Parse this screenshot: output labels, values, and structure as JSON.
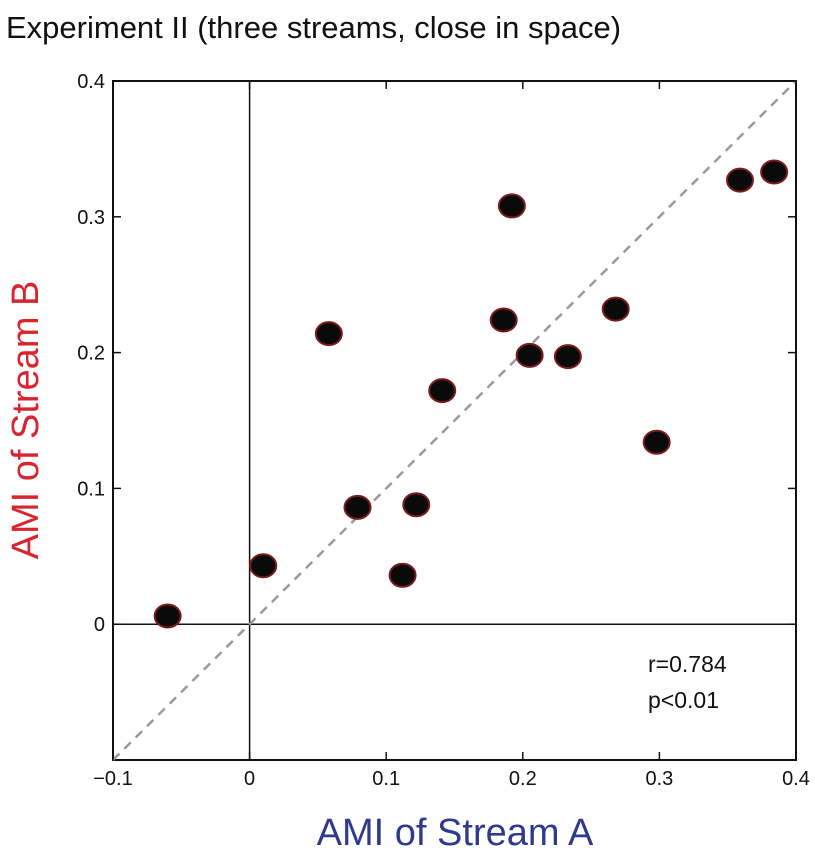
{
  "chart_data": {
    "type": "scatter",
    "title": "Experiment II (three streams, close in space)",
    "xlabel": "AMI of Stream A",
    "ylabel": "AMI of Stream B",
    "xlim": [
      -0.1,
      0.4
    ],
    "ylim": [
      -0.1,
      0.4
    ],
    "xticks": [
      -0.1,
      0,
      0.1,
      0.2,
      0.3,
      0.4
    ],
    "xtick_labels": [
      "−0.1",
      "0",
      "0.1",
      "0.2",
      "0.3",
      "0.4"
    ],
    "yticks": [
      0,
      0.1,
      0.2,
      0.3,
      0.4
    ],
    "ytick_labels": [
      "0",
      "0.1",
      "0.2",
      "0.3",
      "0.4"
    ],
    "grid": false,
    "reference_line": "identity (dashed)",
    "zero_lines": true,
    "points": [
      {
        "x": -0.06,
        "y": 0.006
      },
      {
        "x": 0.01,
        "y": 0.043
      },
      {
        "x": 0.058,
        "y": 0.214
      },
      {
        "x": 0.079,
        "y": 0.086
      },
      {
        "x": 0.112,
        "y": 0.036
      },
      {
        "x": 0.122,
        "y": 0.088
      },
      {
        "x": 0.141,
        "y": 0.172
      },
      {
        "x": 0.186,
        "y": 0.224
      },
      {
        "x": 0.192,
        "y": 0.308
      },
      {
        "x": 0.205,
        "y": 0.198
      },
      {
        "x": 0.233,
        "y": 0.197
      },
      {
        "x": 0.268,
        "y": 0.232
      },
      {
        "x": 0.298,
        "y": 0.134
      },
      {
        "x": 0.359,
        "y": 0.327
      },
      {
        "x": 0.384,
        "y": 0.333
      }
    ],
    "annotations": [
      "r=0.784",
      "p<0.01"
    ]
  },
  "colors": {
    "xlabel": "#2e3a8c",
    "ylabel": "#d9232d",
    "marker_fill": "#0a0a0a",
    "marker_edge": "#7a1c1c",
    "reference_line": "#9a9a9a"
  }
}
